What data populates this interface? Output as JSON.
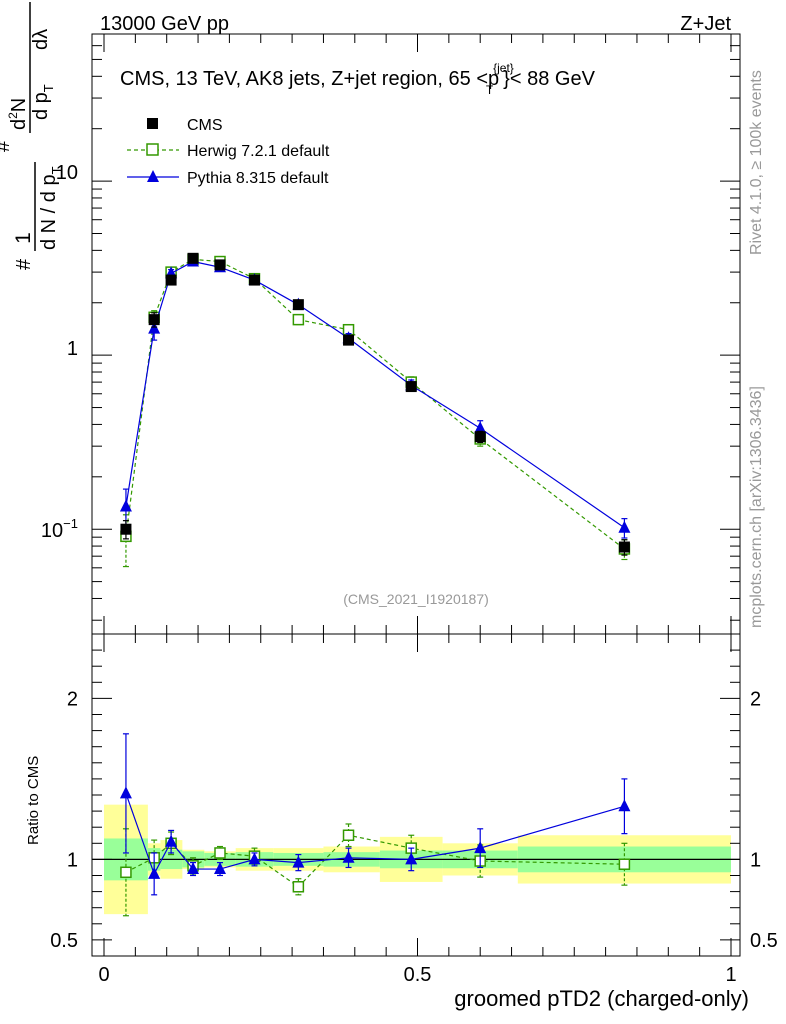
{
  "header": {
    "energy_label": "13000 GeV pp",
    "process_label": "Z+Jet"
  },
  "side_labels": {
    "rivet": "Rivet 4.1.0, ≥ 100k events",
    "mcplots": "mcplots.cern.ch [arXiv:1306.3436]"
  },
  "chart_data": {
    "type": "line",
    "title": "CMS, 13 TeV, AK8 jets, Z+jet region, 65 <p",
    "title_sup": "{jet}",
    "title_sub": "T",
    "title_end": "}< 88 GeV",
    "analysis_id": "(CMS_2021_I1920187)",
    "xlabel": "groomed pTD2 (charged-only)",
    "ylabel_top": {
      "hash": "#",
      "one": "1",
      "dN": "d N / d p",
      "dN_sub": "T",
      "hash2": "#",
      "d2N": "d",
      "d2N_sup": "2",
      "d2N_end": "N",
      "dp": "d p",
      "dp_sub": "T",
      "dlambda": "dλ"
    },
    "ylabel_ratio": "Ratio to CMS",
    "xlim": [
      0,
      1
    ],
    "ylim_main": [
      0.025,
      70
    ],
    "ylim_ratio": [
      0.4,
      2.4
    ],
    "x_ticks": [
      "0",
      "0.5",
      "1"
    ],
    "y_ticks_main": {
      "ten_minus_one_base": "10",
      "ten_minus_one_exp": "−1",
      "one": "1",
      "ten": "10"
    },
    "y_ticks_ratio": [
      "0.5",
      "1",
      "2"
    ],
    "legend": [
      {
        "name": "CMS",
        "marker": "filled-square",
        "color": "#000000"
      },
      {
        "name": "Herwig 7.2.1 default",
        "marker": "open-square",
        "color": "#339900",
        "style": "dashed"
      },
      {
        "name": "Pythia 8.315 default",
        "marker": "filled-triangle",
        "color": "#0000dd",
        "style": "solid"
      }
    ],
    "bin_edges": [
      0.0,
      0.07,
      0.09,
      0.125,
      0.16,
      0.21,
      0.27,
      0.35,
      0.44,
      0.54,
      0.66,
      1.0
    ],
    "x": [
      0.035,
      0.08,
      0.107,
      0.142,
      0.185,
      0.24,
      0.31,
      0.39,
      0.49,
      0.6,
      0.83
    ],
    "series": [
      {
        "name": "CMS",
        "values": [
          0.1,
          1.6,
          2.7,
          3.6,
          3.3,
          2.7,
          1.95,
          1.22,
          0.66,
          0.34,
          0.079
        ],
        "errors": [
          0.012,
          0.15,
          0.15,
          0.16,
          0.15,
          0.13,
          0.09,
          0.06,
          0.04,
          0.025,
          0.008
        ]
      },
      {
        "name": "Herwig 7.2.1 default",
        "values": [
          0.091,
          1.65,
          3.0,
          3.55,
          3.45,
          2.75,
          1.6,
          1.4,
          0.7,
          0.33,
          0.077
        ],
        "errors": [
          0.03,
          0.15,
          0.15,
          0.15,
          0.13,
          0.12,
          0.1,
          0.08,
          0.05,
          0.03,
          0.01
        ]
      },
      {
        "name": "Pythia 8.315 default",
        "values": [
          0.135,
          1.42,
          2.95,
          3.45,
          3.2,
          2.7,
          1.95,
          1.25,
          0.67,
          0.38,
          0.102
        ],
        "errors": [
          0.035,
          0.2,
          0.15,
          0.14,
          0.13,
          0.12,
          0.1,
          0.08,
          0.05,
          0.04,
          0.013
        ]
      }
    ],
    "ratio_series": [
      {
        "name": "Herwig 7.2.1 default",
        "values": [
          0.92,
          1.01,
          1.1,
          0.96,
          1.04,
          1.02,
          0.83,
          1.15,
          1.07,
          0.99,
          0.97
        ],
        "errors": [
          0.27,
          0.11,
          0.07,
          0.05,
          0.04,
          0.05,
          0.05,
          0.07,
          0.08,
          0.1,
          0.13
        ]
      },
      {
        "name": "Pythia 8.315 default",
        "values": [
          1.41,
          0.91,
          1.11,
          0.94,
          0.94,
          1.0,
          0.98,
          1.01,
          1.0,
          1.07,
          1.33
        ],
        "errors": [
          0.37,
          0.13,
          0.07,
          0.04,
          0.04,
          0.04,
          0.05,
          0.06,
          0.07,
          0.12,
          0.17
        ]
      }
    ],
    "band_stat": [
      0.13,
      0.07,
      0.06,
      0.05,
      0.04,
      0.045,
      0.04,
      0.045,
      0.055,
      0.055,
      0.08
    ],
    "band_total": [
      0.34,
      0.1,
      0.12,
      0.06,
      0.05,
      0.07,
      0.07,
      0.08,
      0.14,
      0.1,
      0.15
    ],
    "colors": {
      "cms": "#000000",
      "herwig": "#339900",
      "pythia": "#0000dd",
      "band_stat": "#99ff99",
      "band_total": "#ffff99"
    }
  }
}
